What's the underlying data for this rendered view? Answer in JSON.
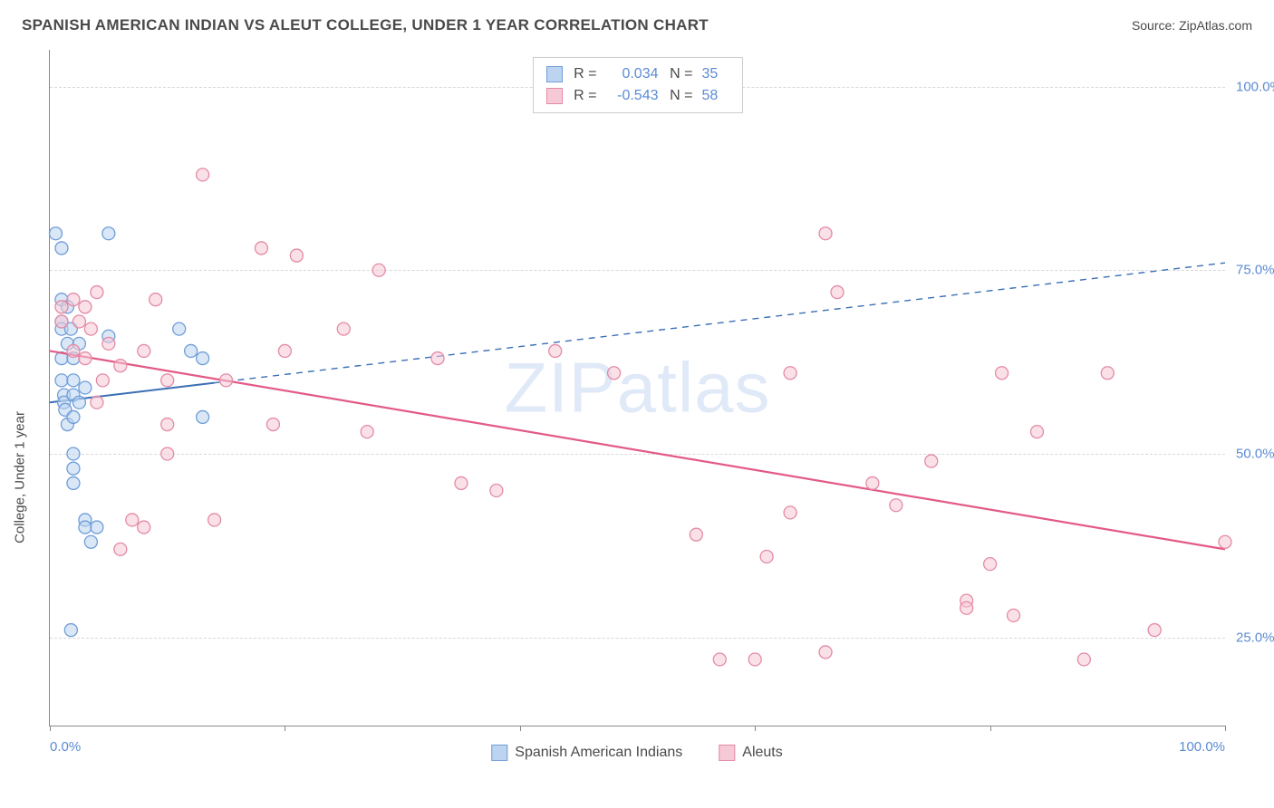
{
  "title": "SPANISH AMERICAN INDIAN VS ALEUT COLLEGE, UNDER 1 YEAR CORRELATION CHART",
  "source_prefix": "Source: ",
  "source_name": "ZipAtlas.com",
  "watermark": "ZIPatlas",
  "ylabel": "College, Under 1 year",
  "chart": {
    "type": "scatter",
    "xlim": [
      0,
      100
    ],
    "ylim": [
      13,
      105
    ],
    "xticks": [
      0,
      20,
      40,
      60,
      80,
      100
    ],
    "yticks": [
      25,
      50,
      75,
      100
    ],
    "xtick_labels": [
      "0.0%",
      "",
      "",
      "",
      "",
      "100.0%"
    ],
    "ytick_labels": [
      "25.0%",
      "50.0%",
      "75.0%",
      "100.0%"
    ],
    "background_color": "#ffffff",
    "grid_color": "#d8d8d8",
    "axis_color": "#888888",
    "marker_radius": 7,
    "marker_stroke_width": 1.3,
    "series": [
      {
        "name": "Spanish American Indians",
        "fill": "#bcd4ef",
        "fill_opacity": 0.55,
        "stroke": "#6f9ed9",
        "R": "0.034",
        "N": "35",
        "trend": {
          "solid_xlimit": 14,
          "y_at_x0": 57,
          "y_at_x100": 76,
          "color": "#3b6fb5",
          "width": 2
        },
        "points": [
          [
            0.5,
            80
          ],
          [
            1,
            78
          ],
          [
            1,
            71
          ],
          [
            1,
            68
          ],
          [
            1,
            67
          ],
          [
            1,
            63
          ],
          [
            1,
            60
          ],
          [
            1.2,
            58
          ],
          [
            1.2,
            57
          ],
          [
            1.3,
            56
          ],
          [
            1.5,
            54
          ],
          [
            1.5,
            65
          ],
          [
            1.5,
            70
          ],
          [
            1.8,
            67
          ],
          [
            2,
            63
          ],
          [
            2,
            60
          ],
          [
            2,
            58
          ],
          [
            2,
            55
          ],
          [
            2,
            50
          ],
          [
            2,
            48
          ],
          [
            2,
            46
          ],
          [
            2.5,
            57
          ],
          [
            2.5,
            65
          ],
          [
            3,
            59
          ],
          [
            3,
            41
          ],
          [
            3,
            40
          ],
          [
            3.5,
            38
          ],
          [
            4,
            40
          ],
          [
            5,
            80
          ],
          [
            5,
            66
          ],
          [
            11,
            67
          ],
          [
            12,
            64
          ],
          [
            13,
            63
          ],
          [
            13,
            55
          ],
          [
            1.8,
            26
          ]
        ]
      },
      {
        "name": "Aleuts",
        "fill": "#f6c9d6",
        "fill_opacity": 0.55,
        "stroke": "#e48aa6",
        "R": "-0.543",
        "N": "58",
        "trend": {
          "solid_xlimit": 100,
          "y_at_x0": 64,
          "y_at_x100": 37,
          "color": "#e35a85",
          "width": 2.2
        },
        "points": [
          [
            1,
            70
          ],
          [
            1,
            68
          ],
          [
            2,
            71
          ],
          [
            2,
            64
          ],
          [
            2.5,
            68
          ],
          [
            3,
            70
          ],
          [
            3,
            63
          ],
          [
            3.5,
            67
          ],
          [
            4,
            72
          ],
          [
            4,
            57
          ],
          [
            4.5,
            60
          ],
          [
            5,
            65
          ],
          [
            6,
            62
          ],
          [
            6,
            37
          ],
          [
            7,
            41
          ],
          [
            8,
            40
          ],
          [
            8,
            64
          ],
          [
            9,
            71
          ],
          [
            10,
            60
          ],
          [
            10,
            54
          ],
          [
            10,
            50
          ],
          [
            13,
            88
          ],
          [
            14,
            41
          ],
          [
            15,
            60
          ],
          [
            18,
            78
          ],
          [
            19,
            54
          ],
          [
            20,
            64
          ],
          [
            21,
            77
          ],
          [
            25,
            67
          ],
          [
            27,
            53
          ],
          [
            28,
            75
          ],
          [
            33,
            63
          ],
          [
            35,
            46
          ],
          [
            38,
            45
          ],
          [
            43,
            64
          ],
          [
            48,
            61
          ],
          [
            55,
            39
          ],
          [
            57,
            22
          ],
          [
            60,
            22
          ],
          [
            61,
            36
          ],
          [
            63,
            42
          ],
          [
            63,
            61
          ],
          [
            66,
            80
          ],
          [
            66,
            23
          ],
          [
            67,
            72
          ],
          [
            70,
            46
          ],
          [
            72,
            43
          ],
          [
            75,
            49
          ],
          [
            78,
            30
          ],
          [
            78,
            29
          ],
          [
            80,
            35
          ],
          [
            81,
            61
          ],
          [
            82,
            28
          ],
          [
            84,
            53
          ],
          [
            88,
            22
          ],
          [
            90,
            61
          ],
          [
            94,
            26
          ],
          [
            100,
            38
          ]
        ]
      }
    ]
  },
  "colors": {
    "text_primary": "#4a4a4a",
    "text_accent": "#5b8bd4"
  }
}
